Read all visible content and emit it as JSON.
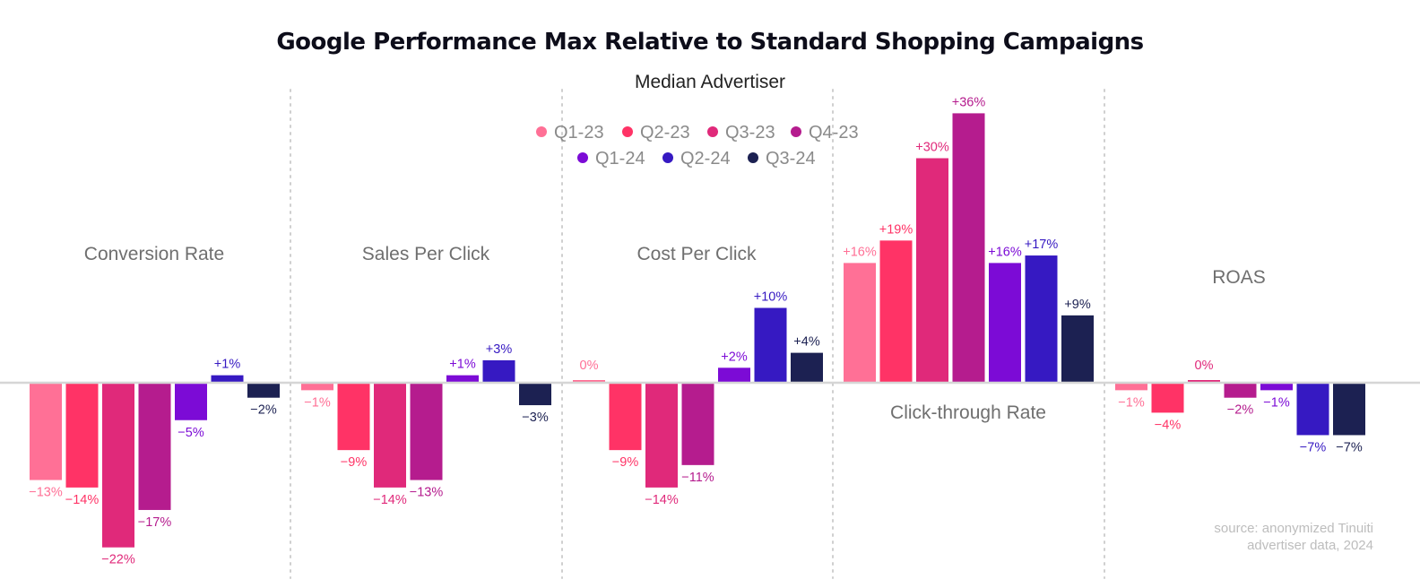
{
  "chart_data": {
    "type": "bar",
    "title": "Google Performance Max Relative to Standard Shopping Campaigns",
    "subtitle": "Median Advertiser",
    "unit": "%",
    "series": [
      {
        "name": "Q1-23",
        "color": "#FF7096"
      },
      {
        "name": "Q2-23",
        "color": "#FF3366"
      },
      {
        "name": "Q3-23",
        "color": "#E0297A"
      },
      {
        "name": "Q4-23",
        "color": "#B51C8E"
      },
      {
        "name": "Q1-24",
        "color": "#7C0BD6"
      },
      {
        "name": "Q2-24",
        "color": "#3619C2"
      },
      {
        "name": "Q3-24",
        "color": "#1C2152"
      }
    ],
    "groups": [
      {
        "label": "Conversion Rate",
        "values": [
          -13,
          -14,
          -22,
          -17,
          -5,
          1,
          -2
        ]
      },
      {
        "label": "Sales Per Click",
        "values": [
          -1,
          -9,
          -14,
          -13,
          1,
          3,
          -3
        ]
      },
      {
        "label": "Cost Per Click",
        "values": [
          0,
          -9,
          -14,
          -11,
          2,
          10,
          4
        ]
      },
      {
        "label": "Click-through Rate",
        "values": [
          16,
          19,
          30,
          36,
          16,
          17,
          9
        ]
      },
      {
        "label": "ROAS",
        "values": [
          -1,
          -4,
          0,
          -2,
          -1,
          -7,
          -7
        ]
      }
    ],
    "value_labels": [
      [
        "−13%",
        "−14%",
        "−22%",
        "−17%",
        "−5%",
        "+1%",
        "−2%"
      ],
      [
        "−1%",
        "−9%",
        "−14%",
        "−13%",
        "+1%",
        "+3%",
        "−3%"
      ],
      [
        "0%",
        "−9%",
        "−14%",
        "−11%",
        "+2%",
        "+10%",
        "+4%"
      ],
      [
        "+16%",
        "+19%",
        "+30%",
        "+36%",
        "+16%",
        "+17%",
        "+9%"
      ],
      [
        "−1%",
        "−4%",
        "0%",
        "−2%",
        "−1%",
        "−7%",
        "−7%"
      ]
    ],
    "legend_placement": "top-center",
    "grid": false
  },
  "source_note": [
    "source: anonymized Tinuiti",
    "advertiser data, 2024"
  ]
}
